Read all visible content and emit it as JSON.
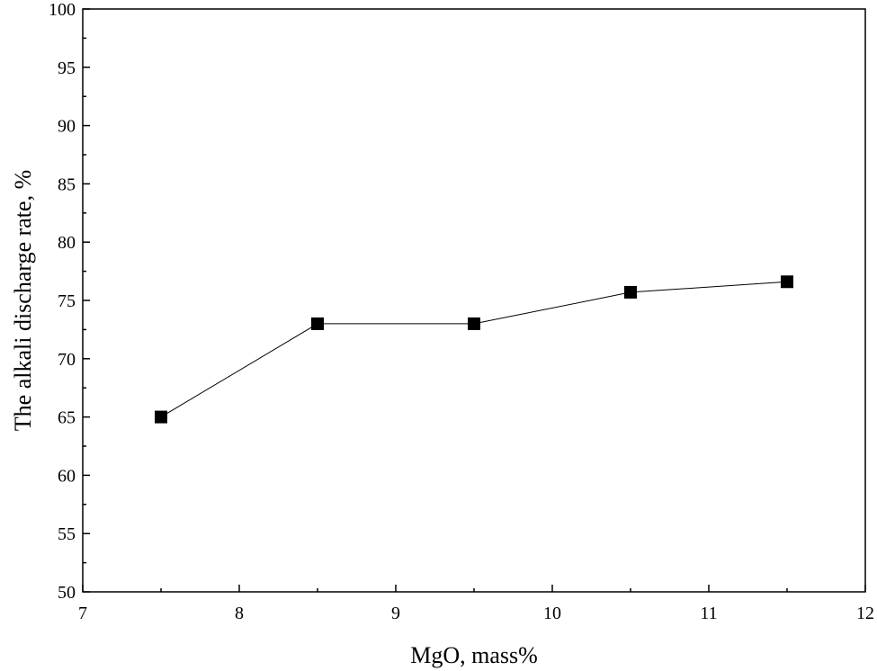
{
  "chart_data": {
    "type": "line",
    "title": "",
    "xlabel": "MgO, mass%",
    "ylabel": "The alkali discharge rate, %",
    "xlim": [
      7,
      12
    ],
    "ylim": [
      50,
      100
    ],
    "x_ticks": [
      7,
      8,
      9,
      10,
      11,
      12
    ],
    "y_ticks": [
      50,
      55,
      60,
      65,
      70,
      75,
      80,
      85,
      90,
      95,
      100
    ],
    "x_minor_step": 0.5,
    "y_minor_step": 2.5,
    "grid": false,
    "legend": "none",
    "marker": "square",
    "series": [
      {
        "x": [
          7.5,
          8.5,
          9.5,
          10.5,
          11.5
        ],
        "values": [
          65.0,
          73.0,
          73.0,
          75.7,
          76.6
        ]
      }
    ]
  }
}
